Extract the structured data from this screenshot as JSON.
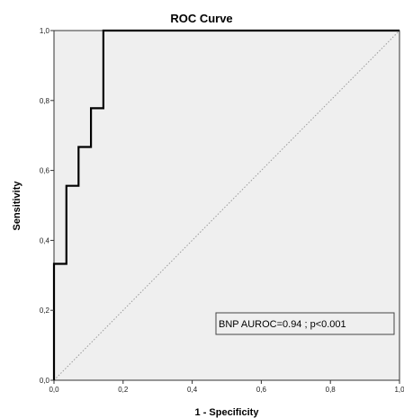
{
  "chart_data": {
    "type": "line",
    "title": "ROC Curve",
    "xlabel": "1 - Specificity",
    "ylabel": "Sensitivity",
    "xlim": [
      0,
      1
    ],
    "ylim": [
      0,
      1
    ],
    "x_ticks": [
      "0,0",
      "0,2",
      "0,4",
      "0,6",
      "0,8",
      "1,0"
    ],
    "y_ticks": [
      "0,0",
      "0,2",
      "0,4",
      "0,6",
      "0,8",
      "1,0"
    ],
    "grid": false,
    "series": [
      {
        "style": "solid",
        "x": [
          0.0,
          0.0,
          0.036,
          0.036,
          0.071,
          0.071,
          0.107,
          0.107,
          0.143,
          0.143,
          1.0
        ],
        "y": [
          0.0,
          0.333,
          0.333,
          0.556,
          0.556,
          0.667,
          0.667,
          0.778,
          0.778,
          1.0,
          1.0
        ]
      },
      {
        "style": "dotted",
        "x": [
          0,
          1
        ],
        "y": [
          0,
          1
        ]
      }
    ],
    "annotation": "BNP AUROC=0.94 ; p<0.001",
    "colors": {
      "plot_background": "#efefef",
      "curve": "#000000",
      "reference_line": "#9a9a9a"
    }
  }
}
